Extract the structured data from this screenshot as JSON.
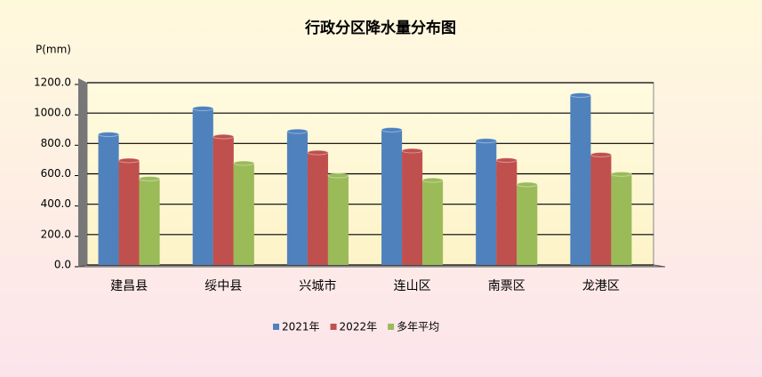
{
  "chart_data": {
    "type": "bar",
    "title": "行政分区降水量分布图",
    "y_label": "P(mm)",
    "categories": [
      "建昌县",
      "绥中县",
      "兴城市",
      "连山区",
      "南票区",
      "龙港区"
    ],
    "series": [
      {
        "name": "2021年",
        "color": "#4f81bd",
        "values": [
          860,
          1030,
          880,
          890,
          818,
          1118
        ]
      },
      {
        "name": "2022年",
        "color": "#c0504d",
        "values": [
          688,
          845,
          740,
          752,
          690,
          726
        ]
      },
      {
        "name": "多年平均",
        "color": "#9bbb59",
        "values": [
          568,
          670,
          588,
          558,
          530,
          598
        ]
      }
    ],
    "ylim": [
      0,
      1200
    ],
    "yticks": [
      {
        "value": 0,
        "label": "0.0"
      },
      {
        "value": 200,
        "label": "200.0"
      },
      {
        "value": 400,
        "label": "400.0"
      },
      {
        "value": 600,
        "label": "600.0"
      },
      {
        "value": 800,
        "label": "800.0"
      },
      {
        "value": 1000,
        "label": "1000.0"
      },
      {
        "value": 1200,
        "label": "1200.0"
      }
    ],
    "grid": true
  }
}
